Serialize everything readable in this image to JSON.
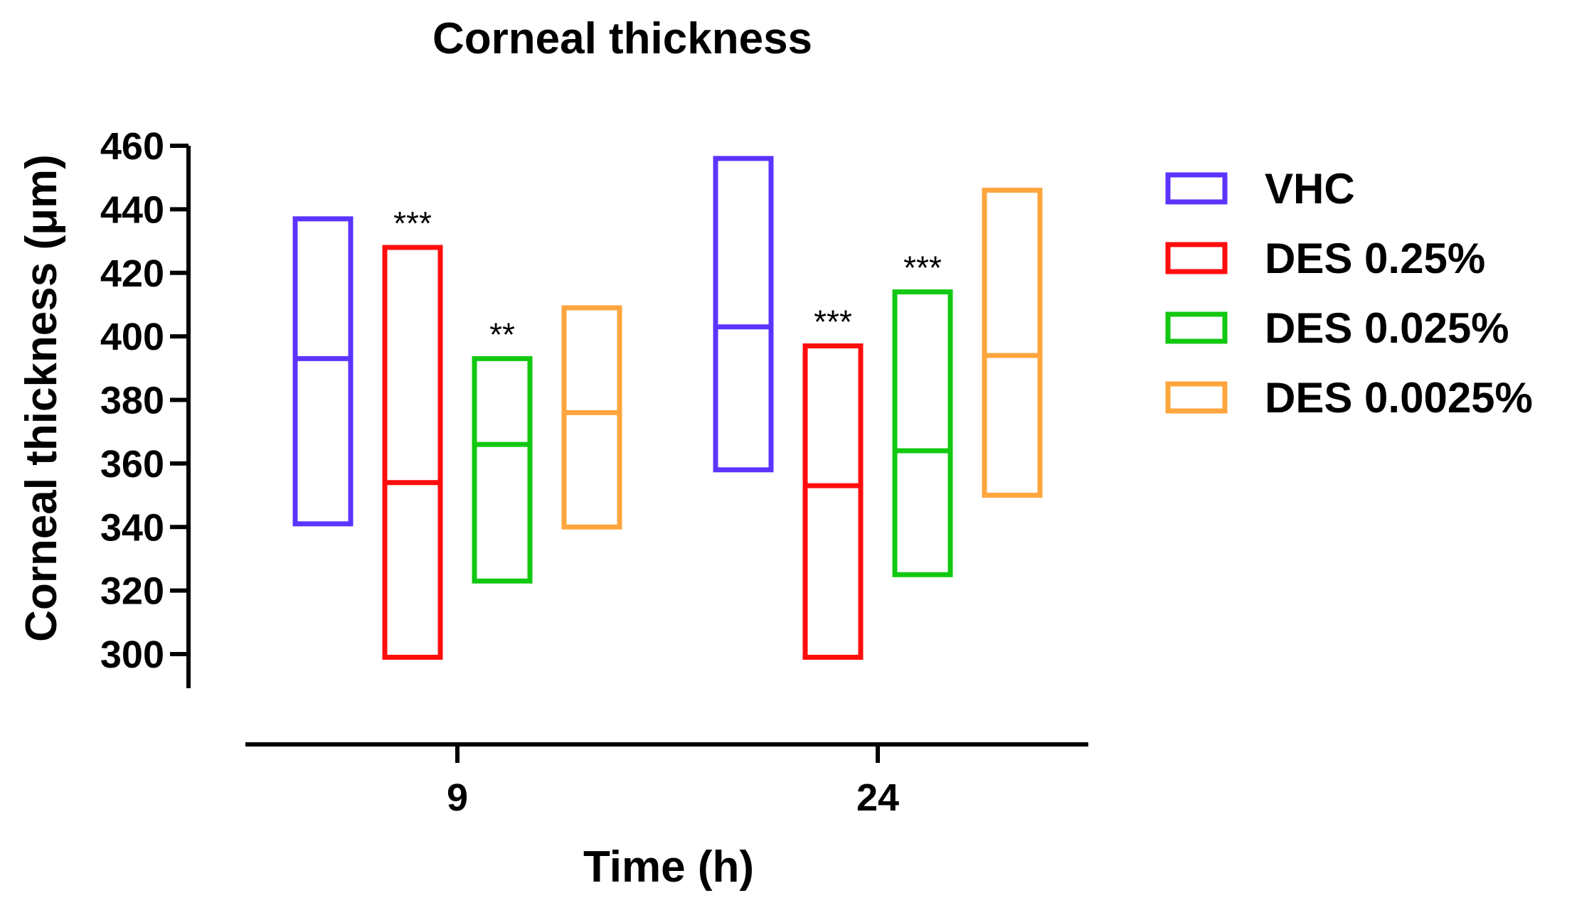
{
  "chart_data": {
    "type": "floating-bar",
    "title": "Corneal thickness",
    "xlabel": "Time (h)",
    "ylabel": "Corneal thickness (μm)",
    "ylim": [
      290,
      460
    ],
    "yticks": [
      300,
      320,
      340,
      360,
      380,
      400,
      420,
      440,
      460
    ],
    "categories": [
      "9",
      "24"
    ],
    "series": [
      {
        "name": "VHC",
        "color": "#5b34ff",
        "values": [
          {
            "min": 341,
            "median": 393,
            "max": 437,
            "annotation": ""
          },
          {
            "min": 358,
            "median": 403,
            "max": 456,
            "annotation": ""
          }
        ]
      },
      {
        "name": "DES 0.25%",
        "color": "#ff0d0d",
        "values": [
          {
            "min": 299,
            "median": 354,
            "max": 428,
            "annotation": "***"
          },
          {
            "min": 299,
            "median": 353,
            "max": 397,
            "annotation": "***"
          }
        ]
      },
      {
        "name": "DES 0.025%",
        "color": "#12c812",
        "values": [
          {
            "min": 323,
            "median": 366,
            "max": 393,
            "annotation": "**"
          },
          {
            "min": 325,
            "median": 364,
            "max": 414,
            "annotation": "***"
          }
        ]
      },
      {
        "name": "DES 0.0025%",
        "color": "#ffa53d",
        "values": [
          {
            "min": 340,
            "median": 376,
            "max": 409,
            "annotation": ""
          },
          {
            "min": 350,
            "median": 394,
            "max": 446,
            "annotation": ""
          }
        ]
      }
    ],
    "legend_position": "right"
  }
}
